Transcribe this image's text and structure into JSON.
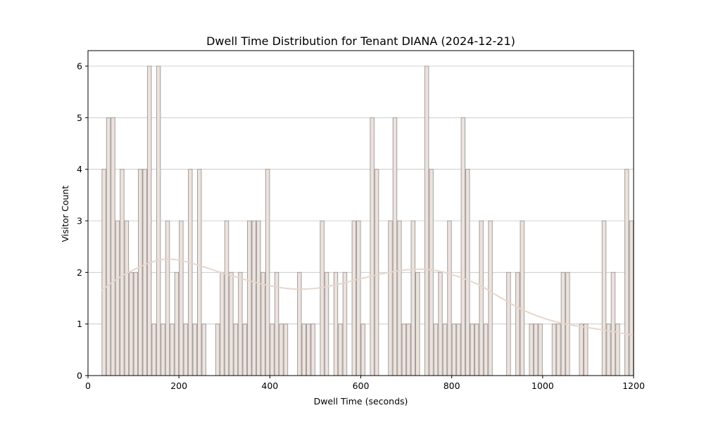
{
  "chart_data": {
    "type": "bar",
    "title": "Dwell Time Distribution for Tenant DIANA (2024-12-21)",
    "xlabel": "Dwell Time (seconds)",
    "ylabel": "Visitor Count",
    "xlim": [
      0,
      1200
    ],
    "ylim": [
      0,
      6.3
    ],
    "xticks": [
      0,
      200,
      400,
      600,
      800,
      1000,
      1200
    ],
    "yticks": [
      0,
      1,
      2,
      3,
      4,
      5,
      6
    ],
    "grid": "horizontal",
    "bin_width": 10,
    "bins": [
      {
        "x": 30,
        "count": 4
      },
      {
        "x": 40,
        "count": 5
      },
      {
        "x": 50,
        "count": 5
      },
      {
        "x": 60,
        "count": 3
      },
      {
        "x": 70,
        "count": 4
      },
      {
        "x": 80,
        "count": 3
      },
      {
        "x": 90,
        "count": 2
      },
      {
        "x": 100,
        "count": 2
      },
      {
        "x": 110,
        "count": 4
      },
      {
        "x": 120,
        "count": 4
      },
      {
        "x": 130,
        "count": 6
      },
      {
        "x": 140,
        "count": 1
      },
      {
        "x": 150,
        "count": 6
      },
      {
        "x": 160,
        "count": 1
      },
      {
        "x": 170,
        "count": 3
      },
      {
        "x": 180,
        "count": 1
      },
      {
        "x": 190,
        "count": 2
      },
      {
        "x": 200,
        "count": 3
      },
      {
        "x": 210,
        "count": 1
      },
      {
        "x": 220,
        "count": 4
      },
      {
        "x": 230,
        "count": 1
      },
      {
        "x": 240,
        "count": 4
      },
      {
        "x": 250,
        "count": 1
      },
      {
        "x": 280,
        "count": 1
      },
      {
        "x": 290,
        "count": 2
      },
      {
        "x": 300,
        "count": 3
      },
      {
        "x": 310,
        "count": 2
      },
      {
        "x": 320,
        "count": 1
      },
      {
        "x": 330,
        "count": 2
      },
      {
        "x": 340,
        "count": 1
      },
      {
        "x": 350,
        "count": 3
      },
      {
        "x": 360,
        "count": 3
      },
      {
        "x": 370,
        "count": 3
      },
      {
        "x": 380,
        "count": 2
      },
      {
        "x": 390,
        "count": 4
      },
      {
        "x": 400,
        "count": 1
      },
      {
        "x": 410,
        "count": 2
      },
      {
        "x": 420,
        "count": 1
      },
      {
        "x": 430,
        "count": 1
      },
      {
        "x": 460,
        "count": 2
      },
      {
        "x": 470,
        "count": 1
      },
      {
        "x": 480,
        "count": 1
      },
      {
        "x": 490,
        "count": 1
      },
      {
        "x": 510,
        "count": 3
      },
      {
        "x": 520,
        "count": 2
      },
      {
        "x": 540,
        "count": 2
      },
      {
        "x": 550,
        "count": 1
      },
      {
        "x": 560,
        "count": 2
      },
      {
        "x": 580,
        "count": 3
      },
      {
        "x": 590,
        "count": 3
      },
      {
        "x": 600,
        "count": 1
      },
      {
        "x": 620,
        "count": 5
      },
      {
        "x": 630,
        "count": 4
      },
      {
        "x": 660,
        "count": 3
      },
      {
        "x": 670,
        "count": 5
      },
      {
        "x": 680,
        "count": 3
      },
      {
        "x": 690,
        "count": 1
      },
      {
        "x": 700,
        "count": 1
      },
      {
        "x": 710,
        "count": 3
      },
      {
        "x": 720,
        "count": 2
      },
      {
        "x": 740,
        "count": 6
      },
      {
        "x": 750,
        "count": 4
      },
      {
        "x": 760,
        "count": 1
      },
      {
        "x": 770,
        "count": 2
      },
      {
        "x": 780,
        "count": 1
      },
      {
        "x": 790,
        "count": 3
      },
      {
        "x": 800,
        "count": 1
      },
      {
        "x": 810,
        "count": 1
      },
      {
        "x": 820,
        "count": 5
      },
      {
        "x": 830,
        "count": 4
      },
      {
        "x": 840,
        "count": 1
      },
      {
        "x": 850,
        "count": 1
      },
      {
        "x": 860,
        "count": 3
      },
      {
        "x": 870,
        "count": 1
      },
      {
        "x": 880,
        "count": 3
      },
      {
        "x": 920,
        "count": 2
      },
      {
        "x": 940,
        "count": 2
      },
      {
        "x": 950,
        "count": 3
      },
      {
        "x": 970,
        "count": 1
      },
      {
        "x": 980,
        "count": 1
      },
      {
        "x": 990,
        "count": 1
      },
      {
        "x": 1020,
        "count": 1
      },
      {
        "x": 1030,
        "count": 1
      },
      {
        "x": 1040,
        "count": 2
      },
      {
        "x": 1050,
        "count": 2
      },
      {
        "x": 1080,
        "count": 1
      },
      {
        "x": 1090,
        "count": 1
      },
      {
        "x": 1130,
        "count": 3
      },
      {
        "x": 1140,
        "count": 1
      },
      {
        "x": 1150,
        "count": 2
      },
      {
        "x": 1160,
        "count": 1
      },
      {
        "x": 1180,
        "count": 4
      },
      {
        "x": 1190,
        "count": 3
      }
    ],
    "kde": {
      "x": [
        30,
        60,
        100,
        140,
        175,
        210,
        250,
        300,
        350,
        400,
        450,
        500,
        550,
        600,
        650,
        700,
        740,
        780,
        820,
        860,
        900,
        950,
        1000,
        1050,
        1100,
        1150,
        1200
      ],
      "y": [
        1.65,
        1.85,
        2.05,
        2.2,
        2.26,
        2.22,
        2.12,
        1.98,
        1.85,
        1.74,
        1.68,
        1.69,
        1.77,
        1.88,
        1.98,
        2.05,
        2.06,
        2.01,
        1.9,
        1.76,
        1.55,
        1.3,
        1.12,
        1.0,
        0.93,
        0.86,
        0.78
      ]
    },
    "colors": {
      "bar_fill": "#ede3de",
      "bar_edge": "#a39f9c",
      "kde_line": "#e8d6cb",
      "grid": "#c4c4c4"
    }
  }
}
